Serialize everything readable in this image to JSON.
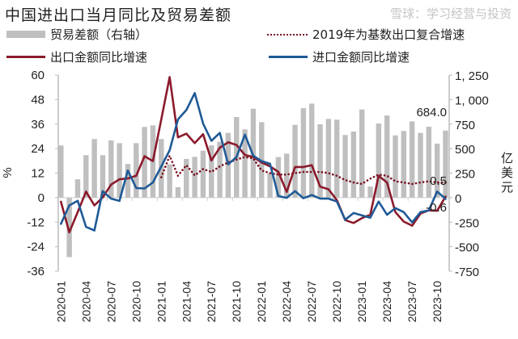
{
  "chart_data": {
    "type": "bar+line",
    "title": "中国进出口当月同比及贸易差额",
    "legend": [
      {
        "key": "trade",
        "label": "贸易差额（右轴）",
        "color": "#bfbfbf",
        "style": "bar"
      },
      {
        "key": "base2019",
        "label": "2019年为基数出口复合增速",
        "color": "#7a1020",
        "style": "dotted"
      },
      {
        "key": "export",
        "label": "出口金额同比增速",
        "color": "#8b1a2b",
        "style": "line"
      },
      {
        "key": "import",
        "label": "进口金额同比增速",
        "color": "#1f5a96",
        "style": "line"
      }
    ],
    "legend_position": "top",
    "ylabel_left": "%",
    "ylabel_right": "亿美元",
    "ylim_left": [
      -36,
      60
    ],
    "yticks_left": [
      60,
      48,
      36,
      24,
      12,
      0,
      -12,
      -24,
      -36
    ],
    "ylim_right": [
      -750,
      1250
    ],
    "yticks_right": [
      "1,250",
      "1,000",
      "750",
      "500",
      "250",
      "0",
      "-250",
      "-500",
      "-750"
    ],
    "categories": [
      "2020-01",
      "2020-02",
      "2020-03",
      "2020-04",
      "2020-05",
      "2020-06",
      "2020-07",
      "2020-08",
      "2020-09",
      "2020-10",
      "2020-11",
      "2020-12",
      "2021-01",
      "2021-02",
      "2021-03",
      "2021-04",
      "2021-05",
      "2021-06",
      "2021-07",
      "2021-08",
      "2021-09",
      "2021-10",
      "2021-11",
      "2021-12",
      "2022-01",
      "2022-02",
      "2022-03",
      "2022-04",
      "2022-05",
      "2022-06",
      "2022-07",
      "2022-08",
      "2022-09",
      "2022-10",
      "2022-11",
      "2022-12",
      "2023-01",
      "2023-02",
      "2023-03",
      "2023-04",
      "2023-05",
      "2023-06",
      "2023-07",
      "2023-08",
      "2023-09",
      "2023-10",
      "2023-11"
    ],
    "xtick_labels": [
      "2020-01",
      "2020-04",
      "2020-07",
      "2020-10",
      "2021-01",
      "2021-04",
      "2021-07",
      "2021-10",
      "2022-01",
      "2022-04",
      "2022-07",
      "2022-10",
      "2023-01",
      "2023-04",
      "2023-07",
      "2023-10"
    ],
    "trade": [
      532,
      -606,
      187,
      433,
      598,
      433,
      584,
      556,
      343,
      556,
      721,
      737,
      598,
      340,
      107,
      395,
      416,
      479,
      534,
      570,
      660,
      822,
      696,
      907,
      770,
      249,
      414,
      449,
      742,
      912,
      959,
      748,
      803,
      795,
      639,
      674,
      899,
      113,
      756,
      838,
      635,
      680,
      778,
      660,
      723,
      551,
      684
    ],
    "export": [
      -2,
      -17,
      -7.1,
      3,
      -3.8,
      0.1,
      6.4,
      9,
      9.4,
      10.7,
      20.3,
      17.9,
      38.4,
      59,
      29.5,
      31.3,
      26.7,
      31.1,
      18.2,
      24.5,
      27.1,
      25.8,
      20.9,
      19.9,
      17.2,
      15.3,
      12.6,
      2.8,
      15,
      15,
      15.9,
      5.4,
      4.1,
      -1.2,
      -11,
      -12.4,
      -10,
      -8.4,
      10.7,
      7.4,
      -7.1,
      -11.7,
      -13.7,
      -7.8,
      -6.2,
      -6.4,
      0.5
    ],
    "import": [
      -12.8,
      -3.8,
      -1.5,
      -14.3,
      -16.1,
      3.2,
      -0.5,
      -1.6,
      13.3,
      4.7,
      4.5,
      7.4,
      15.3,
      23.2,
      38.3,
      42.9,
      51.2,
      36.3,
      27.8,
      31.7,
      16.3,
      19.9,
      30.8,
      20.5,
      17.9,
      16.6,
      0.8,
      -0.1,
      3.2,
      -0.3,
      1.3,
      -0.5,
      -0.5,
      -1.9,
      -10.8,
      -7.5,
      -8.7,
      -9.8,
      -1.9,
      -8.4,
      -5.1,
      -7.1,
      -12.1,
      -7.1,
      -6.2,
      3,
      -0.6
    ],
    "base2019": [
      null,
      null,
      null,
      null,
      null,
      null,
      null,
      null,
      null,
      null,
      null,
      null,
      10,
      20.5,
      10.7,
      15.9,
      10.9,
      14,
      12.6,
      15.3,
      17.2,
      18.6,
      19.9,
      19.2,
      13.3,
      12,
      11.3,
      11.3,
      12,
      12.6,
      12.6,
      12.6,
      12,
      10.7,
      8.6,
      7.4,
      6.7,
      9.3,
      11.3,
      10.7,
      8,
      7.4,
      6.7,
      7.4,
      8,
      7.4,
      7.4
    ],
    "annotations": {
      "trade_last": "684.0",
      "export_last": "0.5",
      "import_last": "-0.6"
    }
  },
  "watermark": "雪球：学习经营与投资"
}
